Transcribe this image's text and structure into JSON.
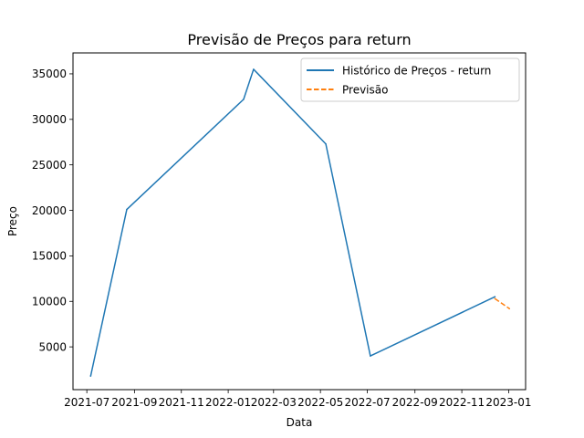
{
  "chart_data": {
    "type": "line",
    "title": "Previsão de Preços para return",
    "xlabel": "Data",
    "ylabel": "Preço",
    "x_ticks": [
      "2021-07",
      "2021-09",
      "2021-11",
      "2022-01",
      "2022-03",
      "2022-05",
      "2022-07",
      "2022-09",
      "2022-11",
      "2023-01"
    ],
    "y_ticks": [
      5000,
      10000,
      15000,
      20000,
      25000,
      30000,
      35000
    ],
    "y_tick_labels": [
      "5000",
      "10000",
      "15000",
      "20000",
      "25000",
      "30000",
      "35000"
    ],
    "xlim": [
      "2021-06-13",
      "2023-01-23"
    ],
    "ylim": [
      300,
      37300
    ],
    "grid": false,
    "legend_position": "top-right",
    "series": [
      {
        "name": "Histórico de Preços - return",
        "color": "#1f77b4",
        "style": "solid",
        "points": [
          {
            "x": "2021-07-06",
            "y": 1800
          },
          {
            "x": "2021-08-22",
            "y": 20100
          },
          {
            "x": "2022-01-21",
            "y": 32200
          },
          {
            "x": "2022-02-03",
            "y": 35500
          },
          {
            "x": "2022-05-08",
            "y": 27300
          },
          {
            "x": "2022-07-05",
            "y": 4000
          },
          {
            "x": "2022-12-14",
            "y": 10500
          }
        ]
      },
      {
        "name": "Previsão",
        "color": "#ff7f0e",
        "style": "dashed",
        "points": [
          {
            "x": "2022-12-14",
            "y": 10300
          },
          {
            "x": "2023-01-02",
            "y": 9200
          }
        ]
      }
    ]
  }
}
